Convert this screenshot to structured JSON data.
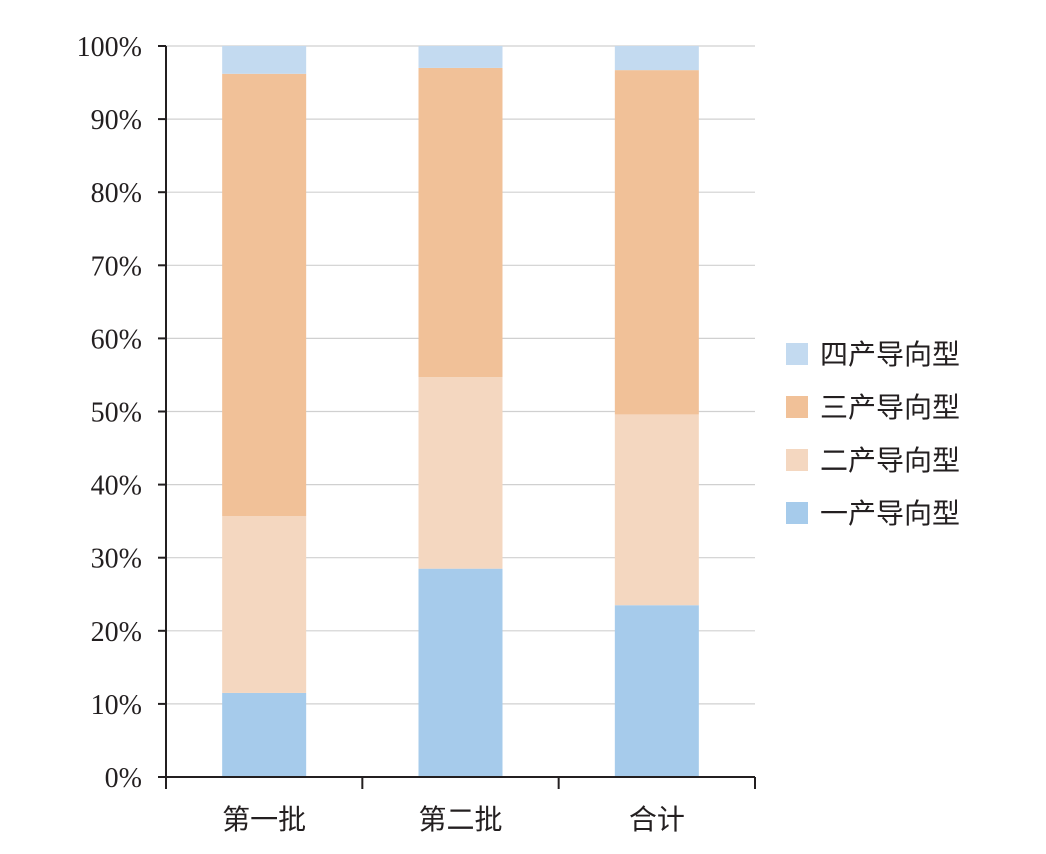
{
  "chart_data": {
    "type": "bar",
    "stacked": true,
    "categories": [
      "第一批",
      "第二批",
      "合计"
    ],
    "series": [
      {
        "name": "一产导向型",
        "values": [
          11.5,
          28.5,
          23.5
        ],
        "color": "#a6cbeb"
      },
      {
        "name": "二产导向型",
        "values": [
          24.2,
          26.2,
          26.1
        ],
        "color": "#f4d7c0"
      },
      {
        "name": "三产导向型",
        "values": [
          60.5,
          42.3,
          47.1
        ],
        "color": "#f1c198"
      },
      {
        "name": "四产导向型",
        "values": [
          3.8,
          3.0,
          3.3
        ],
        "color": "#c3daf0"
      }
    ],
    "y_ticks": [
      "0%",
      "10%",
      "20%",
      "30%",
      "40%",
      "50%",
      "60%",
      "70%",
      "80%",
      "90%",
      "100%"
    ],
    "ylim": [
      0,
      100
    ],
    "grid": true,
    "legend_position": "right",
    "legend_order": [
      "四产导向型",
      "三产导向型",
      "二产导向型",
      "一产导向型"
    ]
  }
}
